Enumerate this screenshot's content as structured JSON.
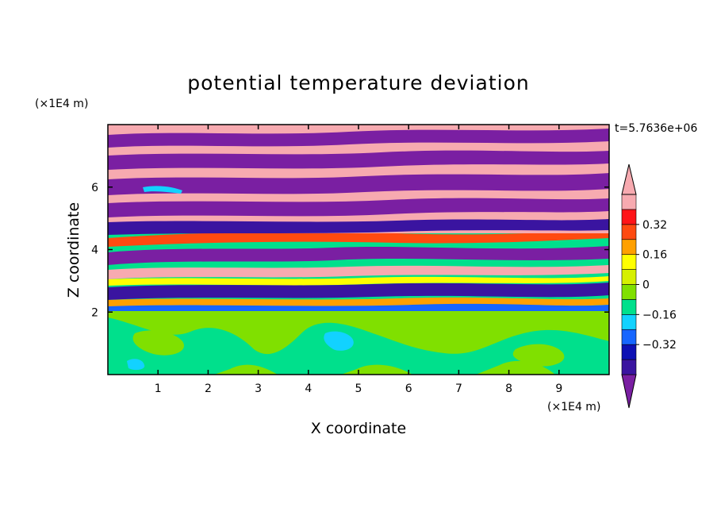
{
  "chart_data": {
    "type": "heatmap",
    "title": "potential temperature deviation",
    "xlabel": "X coordinate",
    "ylabel": "Z coordinate",
    "x_unit": "(×1E4 m)",
    "y_unit": "(×1E4 m)",
    "time_label": "t=5.7636e+06",
    "xlim": [
      0,
      10
    ],
    "ylim": [
      0,
      8
    ],
    "x_ticks": [
      1,
      2,
      3,
      4,
      5,
      6,
      7,
      8,
      9
    ],
    "y_ticks": [
      2,
      4,
      6
    ],
    "colorbar": {
      "levels": [
        -0.48,
        -0.4,
        -0.32,
        -0.24,
        -0.16,
        -0.08,
        0,
        0.08,
        0.16,
        0.24,
        0.32,
        0.4,
        0.48
      ],
      "colors": [
        "#7a1fa2",
        "#3a14a0",
        "#0d10b4",
        "#1666ff",
        "#12d2ff",
        "#00e08c",
        "#80e000",
        "#d6f000",
        "#ffff00",
        "#ffa000",
        "#ff4a10",
        "#ff1418",
        "#f7aab0"
      ],
      "tick_labels": [
        "0.32",
        "0.16",
        "0",
        "−0.16",
        "−0.32"
      ],
      "tick_values": [
        0.32,
        0.16,
        0,
        -0.16,
        -0.32
      ],
      "extend": "both"
    },
    "layers": [
      {
        "z_range": [
          0,
          1.95
        ],
        "dominant_value": 0.02,
        "description": "mostly near-zero field"
      },
      {
        "z_range": [
          1.95,
          4.6
        ],
        "dominant_value": "mixed",
        "description": "strongly varying band"
      },
      {
        "z_range": [
          4.6,
          8
        ],
        "dominant_values": [
          -0.48,
          0.48
        ],
        "description": "alternating bands"
      }
    ]
  }
}
